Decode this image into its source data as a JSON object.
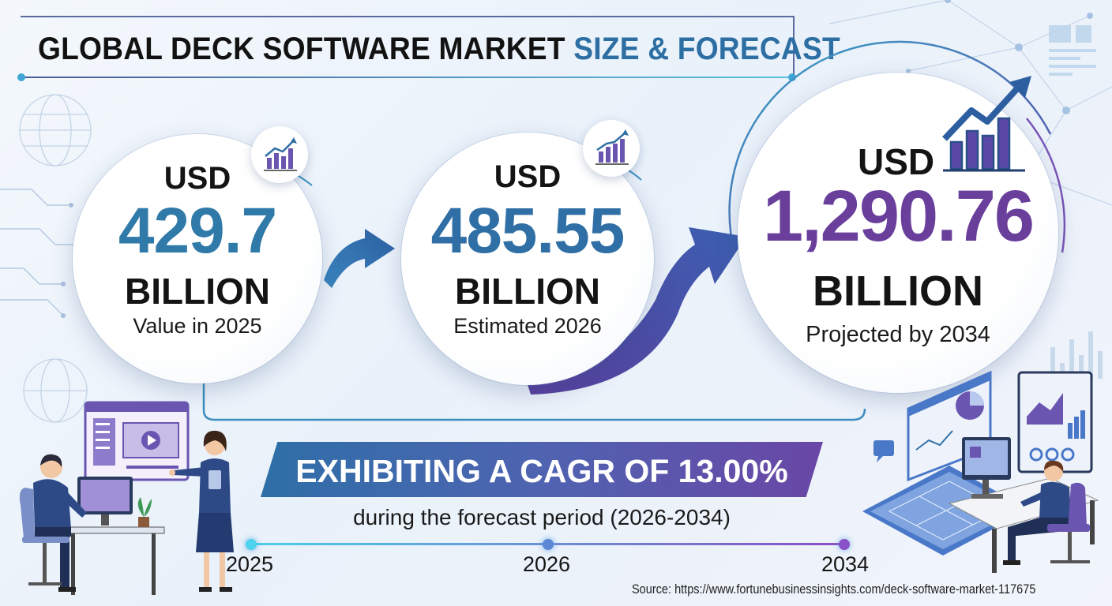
{
  "title": {
    "main": "GLOBAL DECK SOFTWARE MARKET",
    "accent": "SIZE & FORECAST"
  },
  "stats": [
    {
      "currency": "USD",
      "value": "429.7",
      "unit": "BILLION",
      "caption": "Value in 2025",
      "value_color": "#2f7aa8",
      "icon": "bar-chart-growth-icon"
    },
    {
      "currency": "USD",
      "value": "485.55",
      "unit": "BILLION",
      "caption": "Estimated 2026",
      "value_color": "#2f6fa5",
      "icon": "bar-chart-growth-icon"
    },
    {
      "currency": "USD",
      "value": "1,290.76",
      "unit": "BILLION",
      "caption": "Projected by 2034",
      "value_color": "#6a3f9c",
      "icon": "bar-chart-arrow-up-icon"
    }
  ],
  "cagr": {
    "headline": "EXHIBITING A CAGR OF 13.00%",
    "period": "during the forecast period (2026-2034)"
  },
  "timeline": {
    "years": [
      "2025",
      "2026",
      "2034"
    ],
    "dot_colors": [
      "#4fd2ee",
      "#5d86d6",
      "#8a52c8"
    ]
  },
  "source": "Source: https://www.fortunebusinessinsights.com/deck-software-market-117675",
  "colors": {
    "accent_blue": "#2d6fa3",
    "accent_purple": "#6a3f9c",
    "banner_start": "#2e6fa7",
    "banner_end": "#6a46a6"
  }
}
